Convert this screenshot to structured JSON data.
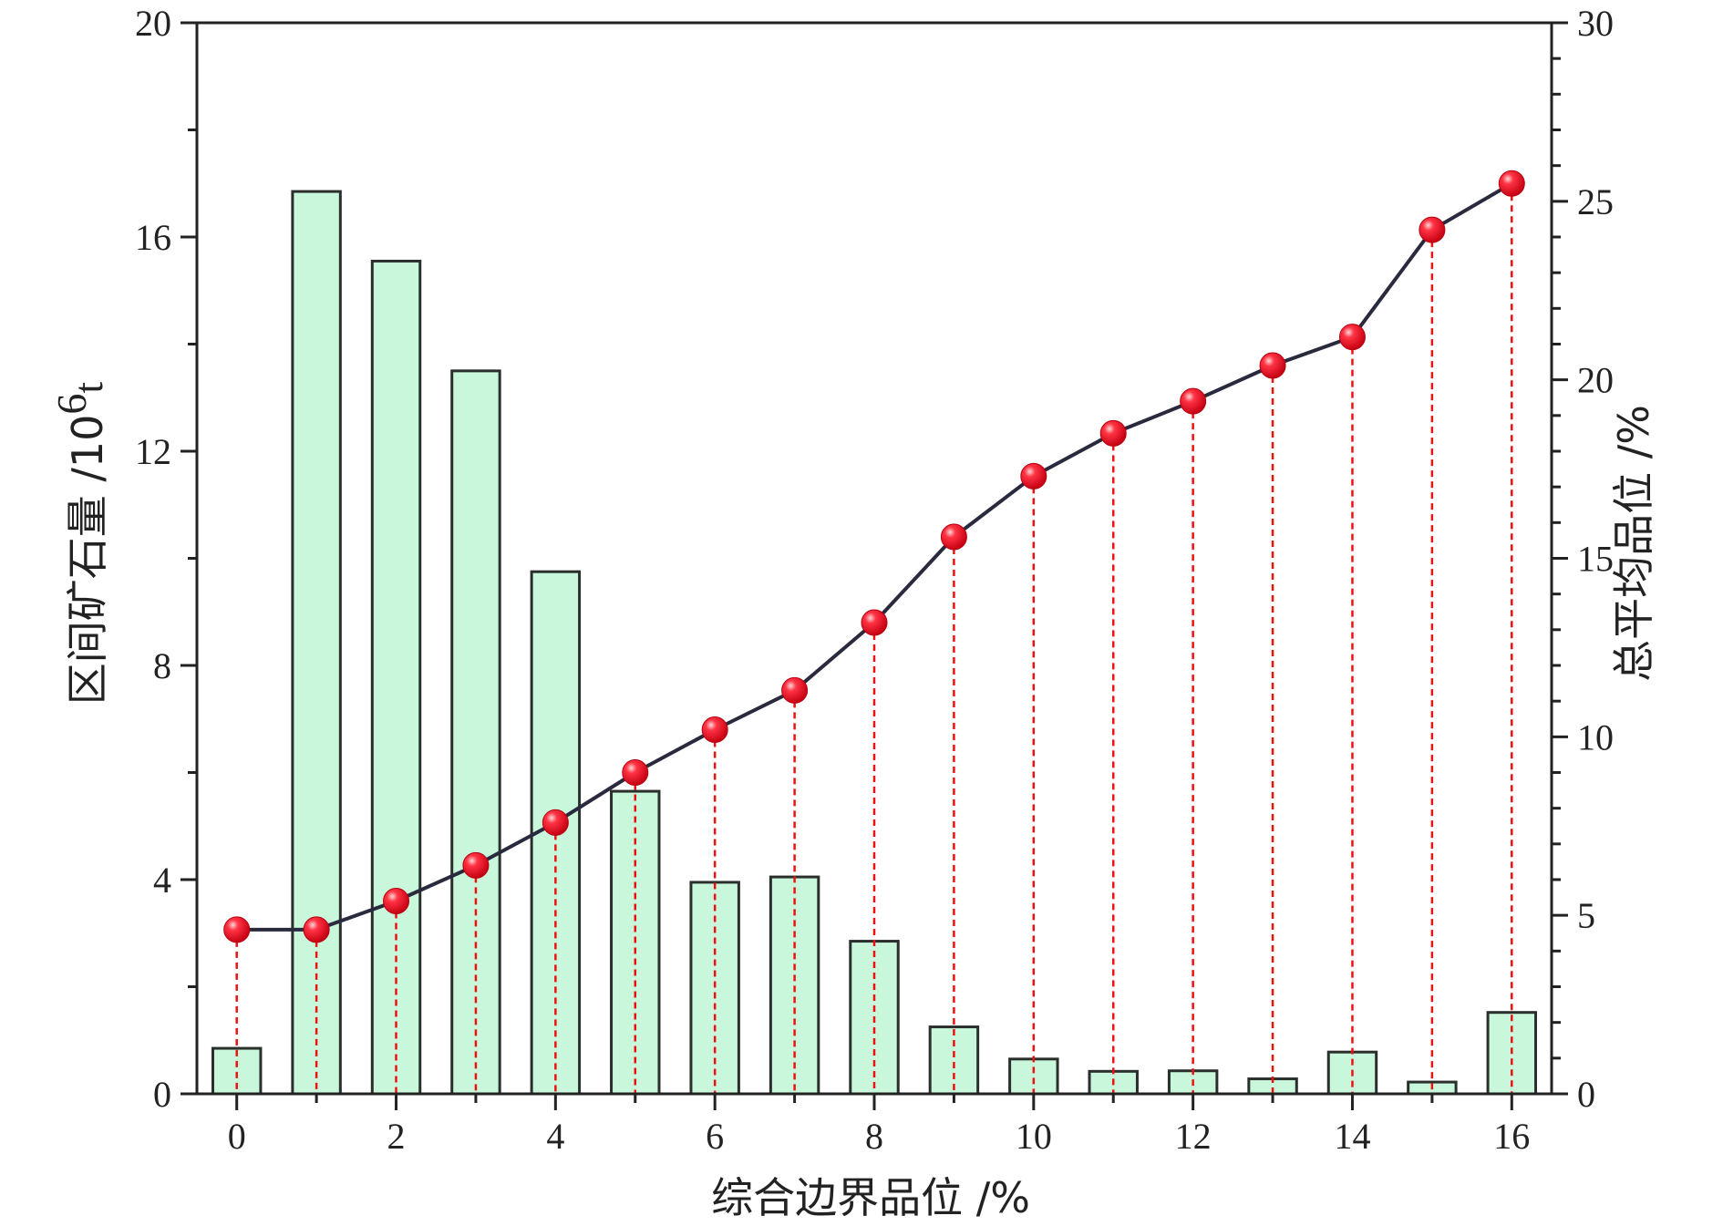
{
  "chart_data": {
    "type": "bar",
    "x": [
      0,
      1,
      2,
      3,
      4,
      5,
      6,
      7,
      8,
      9,
      10,
      11,
      12,
      13,
      14,
      15,
      16
    ],
    "xlabel": "综合边界品位 /%",
    "x_ticks": [
      "0",
      "2",
      "4",
      "6",
      "8",
      "10",
      "12",
      "14",
      "16"
    ],
    "xlim": [
      -0.5,
      16.5
    ],
    "ylabel_left_main": "区间矿石量 /10",
    "ylabel_left_sup": "6",
    "ylabel_left_tail": "t",
    "ylim_left": [
      0,
      20
    ],
    "y_ticks_left": [
      "0",
      "4",
      "8",
      "12",
      "16",
      "20"
    ],
    "ylabel_right": "总平均品位 /%",
    "ylim_right": [
      0,
      30
    ],
    "y_ticks_right": [
      "0",
      "5",
      "10",
      "15",
      "20",
      "25",
      "30"
    ],
    "grid": false,
    "series": [
      {
        "kind": "bar",
        "axis": "left",
        "values": [
          0.85,
          16.85,
          15.55,
          13.5,
          9.75,
          5.65,
          3.95,
          4.05,
          2.85,
          1.25,
          0.65,
          0.42,
          0.43,
          0.28,
          0.78,
          0.22,
          1.52
        ]
      },
      {
        "kind": "line",
        "axis": "right",
        "values": [
          4.6,
          4.6,
          5.4,
          6.4,
          7.6,
          9.0,
          10.2,
          11.3,
          13.2,
          15.6,
          17.3,
          18.5,
          19.4,
          20.4,
          21.2,
          24.2,
          25.5
        ]
      }
    ],
    "colors": {
      "bar_fill": "#c8f7dc",
      "bar_stroke": "#2b2f2c",
      "line": "#2a2a3e",
      "marker": "#ee1122",
      "drop_line": "#ee1111",
      "axis": "#222222"
    }
  }
}
